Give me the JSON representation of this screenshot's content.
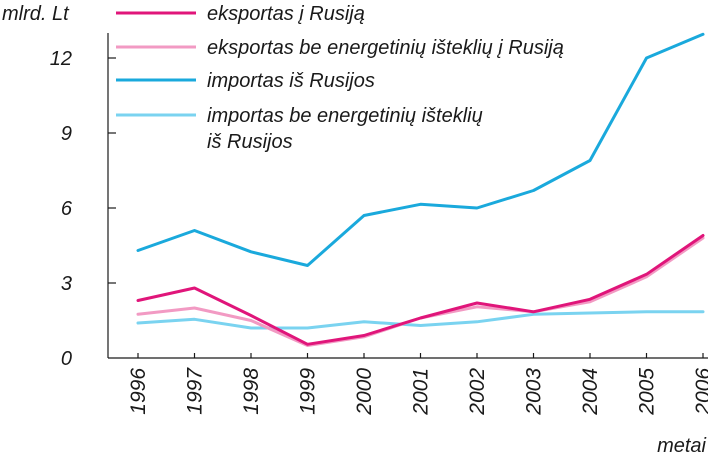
{
  "chart_data": {
    "type": "line",
    "title": "",
    "ylabel": "mlrd. Lt",
    "xlabel": "metai",
    "ylim": [
      0,
      13
    ],
    "yticks": [
      0,
      3,
      6,
      9,
      12
    ],
    "x": [
      "1996",
      "1997",
      "1998",
      "1999",
      "2000",
      "2001",
      "2002",
      "2003",
      "2004",
      "2005",
      "2006"
    ],
    "grid": false,
    "legend_position": "top",
    "series": [
      {
        "name": "eksportas į Rusiją",
        "color": "#e0157a",
        "values": [
          2.3,
          2.8,
          1.7,
          0.55,
          0.9,
          1.6,
          2.2,
          1.85,
          2.35,
          3.35,
          4.9
        ]
      },
      {
        "name": "eksportas be energetinių išteklių į Rusiją",
        "color": "#f29ac3",
        "values": [
          1.75,
          2.0,
          1.5,
          0.5,
          0.85,
          1.6,
          2.05,
          1.85,
          2.25,
          3.25,
          4.8
        ]
      },
      {
        "name": "importas iš Rusijos",
        "color": "#1aa9dc",
        "values": [
          4.3,
          5.1,
          4.25,
          3.7,
          5.7,
          6.15,
          6.0,
          6.7,
          7.9,
          12.0,
          12.95
        ]
      },
      {
        "name": "importas be energetinių išteklių iš Rusijos",
        "legend_lines": [
          "importas be energetinių išteklių",
          "iš Rusijos"
        ],
        "color": "#7ad3f0",
        "values": [
          1.4,
          1.55,
          1.2,
          1.2,
          1.45,
          1.3,
          1.45,
          1.75,
          1.8,
          1.85,
          1.85
        ]
      }
    ]
  }
}
